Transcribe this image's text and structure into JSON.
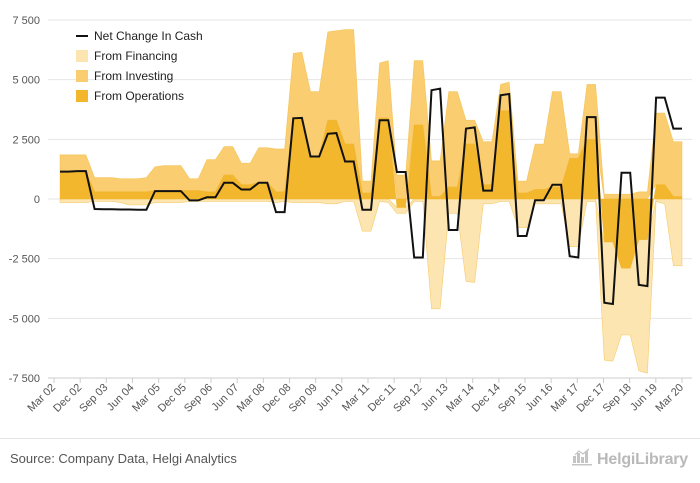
{
  "chart_data": {
    "type": "area",
    "y_ticks": [
      -7500,
      -5000,
      -2500,
      0,
      2500,
      5000,
      7500
    ],
    "y_tick_labels": [
      "-7 500",
      "-5 000",
      "-2 500",
      "0",
      "2 500",
      "5 000",
      "7 500"
    ],
    "ylim": [
      -7500,
      7500
    ],
    "x_tick_labels": [
      "Mar 02",
      "Dec 02",
      "Sep 03",
      "Jun 04",
      "Mar 05",
      "Dec 05",
      "Sep 06",
      "Jun 07",
      "Mar 08",
      "Dec 08",
      "Sep 09",
      "Jun 10",
      "Mar 11",
      "Dec 11",
      "Sep 12",
      "Jun 13",
      "Mar 14",
      "Dec 14",
      "Sep 15",
      "Jun 16",
      "Mar 17",
      "Dec 17",
      "Sep 18",
      "Jun 19",
      "Mar 20"
    ],
    "series": [
      {
        "name": "Net Change In Cash",
        "color": "#111111",
        "values": [
          1150,
          1150,
          1170,
          1170,
          -420,
          -430,
          -430,
          -440,
          -440,
          -450,
          -450,
          330,
          330,
          330,
          330,
          -60,
          -60,
          70,
          70,
          680,
          680,
          400,
          400,
          680,
          680,
          -550,
          -550,
          3380,
          3400,
          1780,
          1780,
          2730,
          2760,
          1570,
          1570,
          -450,
          -450,
          3300,
          3300,
          1130,
          1130,
          -2450,
          -2450,
          4560,
          4620,
          -1300,
          -1300,
          2950,
          3000,
          350,
          350,
          4350,
          4400,
          -1550,
          -1550,
          -50,
          -50,
          600,
          600,
          -2400,
          -2450,
          3430,
          3430,
          -4350,
          -4400,
          1100,
          1100,
          -3600,
          -3650,
          4250,
          4250,
          2950,
          2950
        ]
      },
      {
        "name": "From Financing",
        "color": "#fce5b0",
        "values": [
          -150,
          -150,
          -150,
          -150,
          -100,
          -100,
          -100,
          -150,
          -250,
          -250,
          -250,
          -150,
          -150,
          -150,
          -150,
          -100,
          -100,
          -100,
          -100,
          -100,
          -100,
          -100,
          -100,
          -100,
          -100,
          -150,
          -100,
          -150,
          -150,
          -150,
          -150,
          -200,
          -200,
          -100,
          -100,
          -1350,
          -1350,
          -100,
          -150,
          -250,
          -250,
          -100,
          -100,
          -4600,
          -4600,
          -600,
          -600,
          -3450,
          -3500,
          -200,
          -200,
          -100,
          -100,
          -1200,
          -1200,
          -200,
          -200,
          -200,
          -200,
          -2000,
          -2000,
          -100,
          -100,
          -4950,
          -5000,
          -2800,
          -2800,
          -5500,
          -5600,
          -100,
          -200,
          -2800,
          -2800
        ]
      },
      {
        "name": "From Investing",
        "color": "#f9cd70",
        "values": [
          700,
          700,
          700,
          700,
          600,
          600,
          600,
          550,
          550,
          550,
          600,
          1000,
          1050,
          1050,
          1050,
          500,
          500,
          1350,
          1350,
          1200,
          1200,
          900,
          900,
          1450,
          1450,
          1800,
          1800,
          2700,
          2750,
          2700,
          2700,
          3700,
          3750,
          4800,
          4800,
          500,
          500,
          2300,
          2400,
          1000,
          1000,
          2700,
          2700,
          1500,
          1500,
          4000,
          4000,
          1000,
          1000,
          1800,
          1800,
          1100,
          1200,
          500,
          500,
          1900,
          1900,
          4000,
          4000,
          200,
          200,
          2300,
          2300,
          200,
          200,
          200,
          200,
          300,
          300,
          3000,
          3000,
          2300,
          2300
        ]
      },
      {
        "name": "From Operations",
        "color": "#f2b72c",
        "values": [
          1150,
          1150,
          1150,
          1150,
          300,
          300,
          300,
          300,
          300,
          300,
          300,
          350,
          350,
          350,
          350,
          350,
          350,
          300,
          300,
          1000,
          1000,
          600,
          600,
          700,
          700,
          300,
          300,
          3400,
          3400,
          1800,
          1800,
          3300,
          3300,
          2300,
          2300,
          250,
          250,
          3400,
          3400,
          -350,
          -350,
          3100,
          3100,
          100,
          100,
          500,
          500,
          2300,
          2300,
          600,
          600,
          3700,
          3700,
          250,
          250,
          400,
          400,
          500,
          500,
          1700,
          1700,
          2500,
          2500,
          -1800,
          -1800,
          -2900,
          -2900,
          -1700,
          -1700,
          600,
          600,
          100,
          100
        ]
      }
    ]
  },
  "legend": [
    {
      "label": "Net Change In Cash",
      "color": "#111111",
      "kind": "line"
    },
    {
      "label": "From Financing",
      "color": "#fce5b0",
      "kind": "box"
    },
    {
      "label": "From Investing",
      "color": "#f9cd70",
      "kind": "box"
    },
    {
      "label": "From Operations",
      "color": "#f2b72c",
      "kind": "box"
    }
  ],
  "footer": {
    "source": "Source: Company Data, Helgi Analytics",
    "brand": "HelgiLibrary"
  }
}
